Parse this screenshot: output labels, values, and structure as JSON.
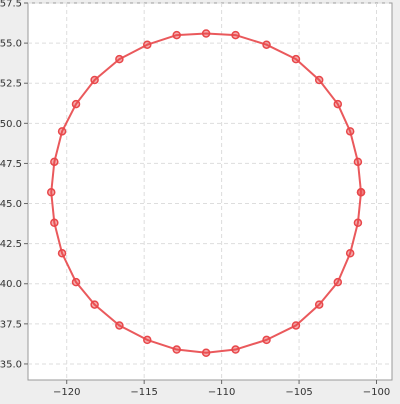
{
  "chart_data": {
    "type": "line",
    "title": "",
    "xlabel": "",
    "ylabel": "",
    "xlim": [
      -122.5,
      -99.0
    ],
    "ylim": [
      34.0,
      57.5
    ],
    "x_ticks": [
      -120,
      -115,
      -110,
      -105,
      -100
    ],
    "x_tick_labels": [
      "−120",
      "−115",
      "−110",
      "−105",
      "−100"
    ],
    "y_ticks": [
      35.0,
      37.5,
      40.0,
      42.5,
      45.0,
      47.5,
      50.0,
      52.5,
      55.0,
      57.5
    ],
    "y_tick_labels": [
      "35.0",
      "37.5",
      "40.0",
      "42.5",
      "45.0",
      "47.5",
      "50.0",
      "52.5",
      "55.0",
      "57.5"
    ],
    "grid": true,
    "grid_style": "dashed",
    "legend": "none",
    "series": [
      {
        "color": "#e8474a",
        "marker": "circle",
        "closed": true,
        "x": [
          -101.0,
          -101.2,
          -101.7,
          -102.5,
          -103.7,
          -105.2,
          -107.1,
          -109.1,
          -111.0,
          -112.9,
          -114.8,
          -116.6,
          -118.2,
          -119.4,
          -120.3,
          -120.8,
          -121.0,
          -120.8,
          -120.3,
          -119.4,
          -118.2,
          -116.6,
          -114.8,
          -112.9,
          -111.0,
          -109.1,
          -107.1,
          -105.2,
          -103.7,
          -102.5,
          -101.7,
          -101.2,
          -101.0
        ],
        "y": [
          45.7,
          47.6,
          49.5,
          51.2,
          52.7,
          54.0,
          54.9,
          55.5,
          55.6,
          55.5,
          54.9,
          54.0,
          52.7,
          51.2,
          49.5,
          47.6,
          45.7,
          43.8,
          41.9,
          40.1,
          38.7,
          37.4,
          36.5,
          35.9,
          35.7,
          35.9,
          36.5,
          37.4,
          38.7,
          40.1,
          41.9,
          43.8,
          45.7
        ]
      }
    ]
  }
}
